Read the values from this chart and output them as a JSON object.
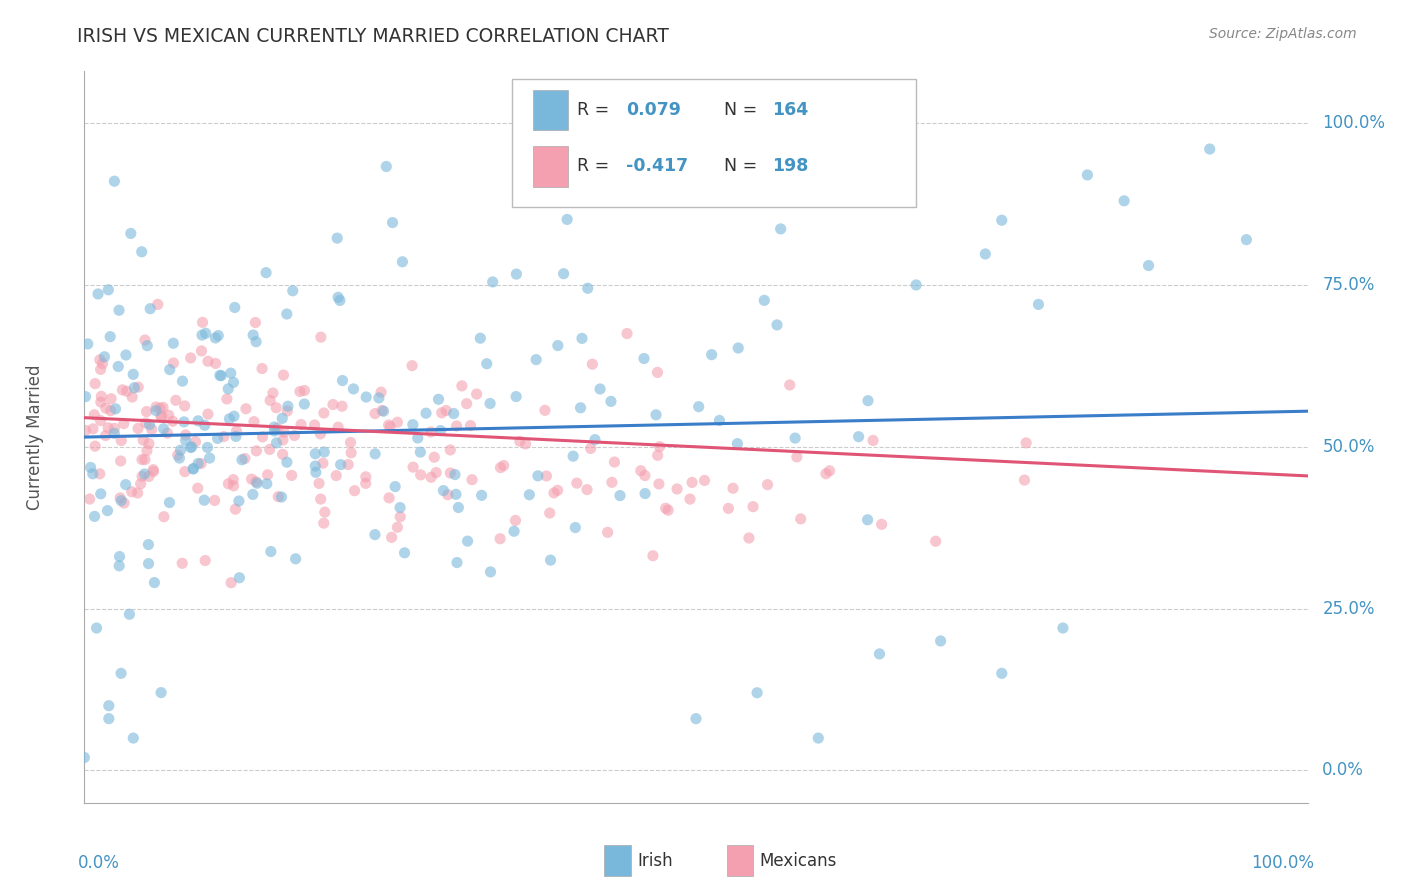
{
  "title": "IRISH VS MEXICAN CURRENTLY MARRIED CORRELATION CHART",
  "source": "Source: ZipAtlas.com",
  "ylabel": "Currently Married",
  "ytick_labels": [
    "0.0%",
    "25.0%",
    "50.0%",
    "75.0%",
    "100.0%"
  ],
  "ytick_values": [
    0.0,
    0.25,
    0.5,
    0.75,
    1.0
  ],
  "xlim": [
    0.0,
    1.0
  ],
  "ylim": [
    -0.05,
    1.08
  ],
  "irish_color": "#7ab8db",
  "mexican_color": "#f4a0b0",
  "irish_line_color": "#3a7dc9",
  "mexican_line_color": "#e05575",
  "irish_R": 0.079,
  "irish_N": 164,
  "mexican_R": -0.417,
  "mexican_N": 198,
  "irish_line_y0": 0.515,
  "irish_line_y1": 0.555,
  "mexican_line_y0": 0.545,
  "mexican_line_y1": 0.455,
  "background_color": "#ffffff",
  "grid_color": "#cccccc",
  "title_color": "#333333",
  "axis_label_color": "#4393c3",
  "legend_color": "#4393c3",
  "seed": 12345
}
